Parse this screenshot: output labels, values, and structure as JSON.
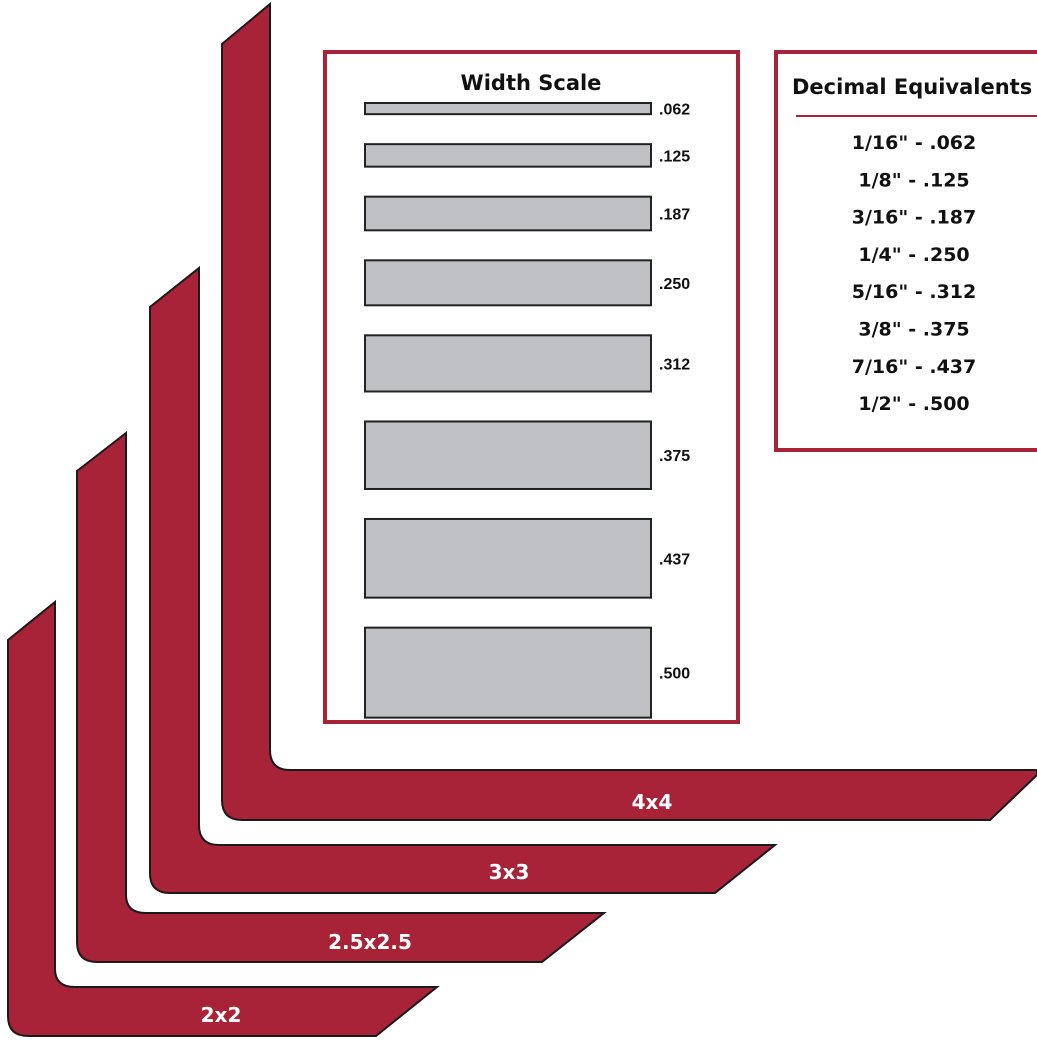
{
  "colors": {
    "angle_fill": "#a82238",
    "angle_stroke": "#1a1a1a",
    "panel_border": "#a82238",
    "bar_fill": "#bfc1c5",
    "bar_stroke": "#222222",
    "text": "#111111",
    "label_text": "#ffffff"
  },
  "angles": [
    {
      "id": "2x2",
      "label": "2x2"
    },
    {
      "id": "2.5x2.5",
      "label": "2.5x2.5"
    },
    {
      "id": "3x3",
      "label": "3x3"
    },
    {
      "id": "4x4",
      "label": "4x4"
    }
  ],
  "width_scale": {
    "title": "Width Scale",
    "bars": [
      {
        "label": ".062",
        "value": 0.062
      },
      {
        "label": ".125",
        "value": 0.125
      },
      {
        "label": ".187",
        "value": 0.187
      },
      {
        "label": ".250",
        "value": 0.25
      },
      {
        "label": ".312",
        "value": 0.312
      },
      {
        "label": ".375",
        "value": 0.375
      },
      {
        "label": ".437",
        "value": 0.437
      },
      {
        "label": ".500",
        "value": 0.5
      }
    ]
  },
  "decimal_equivalents": {
    "title": "Decimal Equivalents",
    "items": [
      "1/16\" - .062",
      "1/8\" - .125",
      "3/16\" - .187",
      "1/4\" - .250",
      "5/16\" - .312",
      "3/8\" - .375",
      "7/16\" - .437",
      "1/2\" - .500"
    ]
  }
}
